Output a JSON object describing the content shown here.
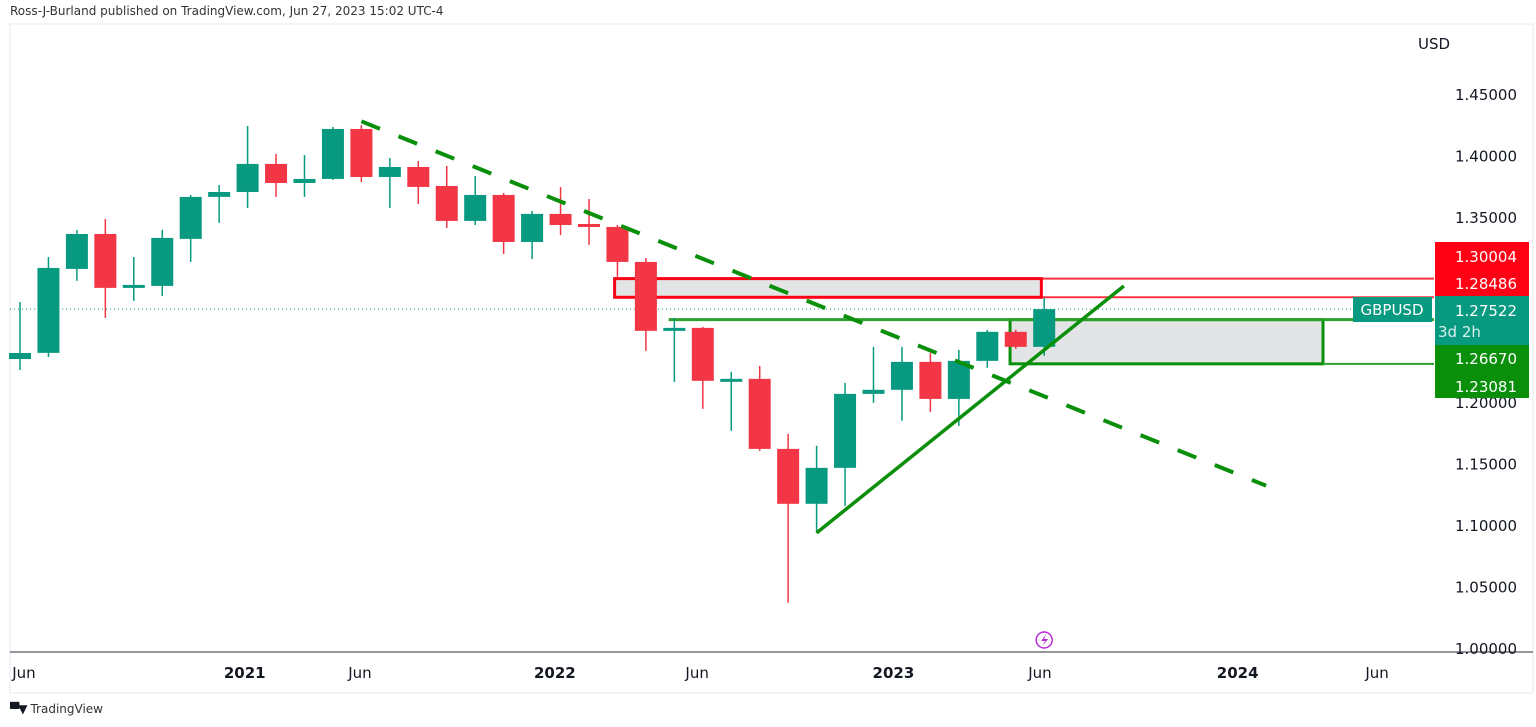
{
  "header": {
    "attribution": "Ross-J-Burland published on TradingView.com, Jun 27, 2023 15:02 UTC-4"
  },
  "footer": {
    "brand": "TradingView",
    "logo_mark": "TV"
  },
  "colors": {
    "up": "#089981",
    "down": "#f23645",
    "trend": "#0a8f0a",
    "zone_red": "#ff0014",
    "zone_green": "#0a8f0a",
    "zone_fill": "#e3e4e6",
    "event": "#b92ad6"
  },
  "chart_data": {
    "type": "candlestick",
    "symbol": "GBPUSD",
    "currency": "USD",
    "timeframe": "monthly",
    "ylim": [
      1.0,
      1.47
    ],
    "yticks": [
      "1.45000",
      "1.40000",
      "1.35000",
      "1.20000",
      "1.15000",
      "1.10000",
      "1.05000",
      "1.00000"
    ],
    "xticks": [
      {
        "label": "Jun",
        "x": 0.14,
        "bold": false
      },
      {
        "label": "2021",
        "x": 7.9,
        "bold": true
      },
      {
        "label": "Jun",
        "x": 11.95,
        "bold": false
      },
      {
        "label": "2022",
        "x": 18.8,
        "bold": true
      },
      {
        "label": "Jun",
        "x": 23.8,
        "bold": false
      },
      {
        "label": "2023",
        "x": 30.7,
        "bold": true
      },
      {
        "label": "Jun",
        "x": 35.85,
        "bold": false
      },
      {
        "label": "2024",
        "x": 42.8,
        "bold": true
      },
      {
        "label": "Jun",
        "x": 47.7,
        "bold": false
      }
    ],
    "candles": [
      [
        1.2347,
        1.281,
        1.2258,
        1.2396
      ],
      [
        1.2397,
        1.3176,
        1.2364,
        1.3087
      ],
      [
        1.3079,
        1.3396,
        1.2982,
        1.3363
      ],
      [
        1.3363,
        1.3485,
        1.2681,
        1.2925
      ],
      [
        1.2925,
        1.3176,
        1.2819,
        1.2949
      ],
      [
        1.2941,
        1.3396,
        1.286,
        1.3331
      ],
      [
        1.3323,
        1.368,
        1.3136,
        1.3664
      ],
      [
        1.3664,
        1.3761,
        1.3453,
        1.3704
      ],
      [
        1.3704,
        1.424,
        1.3574,
        1.3932
      ],
      [
        1.3932,
        1.4013,
        1.3664,
        1.3777
      ],
      [
        1.3777,
        1.4005,
        1.3664,
        1.381
      ],
      [
        1.381,
        1.4232,
        1.3802,
        1.4216
      ],
      [
        1.4216,
        1.4248,
        1.3785,
        1.3826
      ],
      [
        1.3826,
        1.398,
        1.3574,
        1.3907
      ],
      [
        1.3907,
        1.3956,
        1.3607,
        1.3745
      ],
      [
        1.3753,
        1.3915,
        1.3412,
        1.3469
      ],
      [
        1.3469,
        1.3834,
        1.3436,
        1.368
      ],
      [
        1.368,
        1.3696,
        1.32,
        1.3298
      ],
      [
        1.3298,
        1.355,
        1.316,
        1.3526
      ],
      [
        1.3526,
        1.3745,
        1.3355,
        1.3436
      ],
      [
        1.3444,
        1.3647,
        1.3274,
        1.342
      ],
      [
        1.342,
        1.3436,
        1.3014,
        1.3136
      ],
      [
        1.3136,
        1.3168,
        1.2413,
        1.2576
      ],
      [
        1.2576,
        1.2681,
        1.2161,
        1.26
      ],
      [
        1.26,
        1.2608,
        1.1942,
        1.217
      ],
      [
        1.217,
        1.2243,
        1.1764,
        1.2186
      ],
      [
        1.2186,
        1.2291,
        1.1601,
        1.1617
      ],
      [
        1.1617,
        1.1739,
        1.0367,
        1.1171
      ],
      [
        1.1171,
        1.1642,
        1.0935,
        1.1463
      ],
      [
        1.1463,
        1.2153,
        1.1155,
        1.2064
      ],
      [
        1.2064,
        1.2446,
        1.1991,
        1.2097
      ],
      [
        1.2097,
        1.2446,
        1.1845,
        1.2324
      ],
      [
        1.2324,
        1.2397,
        1.1918,
        1.2023
      ],
      [
        1.2023,
        1.2421,
        1.1804,
        1.2332
      ],
      [
        1.2332,
        1.2584,
        1.2275,
        1.2568
      ],
      [
        1.2568,
        1.2584,
        1.243,
        1.2446
      ],
      [
        1.2446,
        1.2843,
        1.2373,
        1.27522
      ]
    ],
    "candle_format": "open,high,low,close",
    "last_price": "1.27522",
    "countdown": "3d 2h",
    "price_labels": {
      "red_top": "1.30004",
      "red_bottom": "1.28486",
      "green_top": "1.26670",
      "green_bottom": "1.23081"
    },
    "drawings": {
      "downtrend_dashed": [
        [
          12,
          1.4278
        ],
        [
          43.8,
          1.1318
        ]
      ],
      "uptrend_solid": [
        [
          28,
          1.0935
        ],
        [
          38.8,
          1.294
        ]
      ],
      "red_zone": {
        "x": [
          20.9,
          35.9
        ],
        "price": [
          1.28486,
          1.30004
        ]
      },
      "green_zone": {
        "x": [
          34.8,
          45.8
        ],
        "price": [
          1.23081,
          1.2667
        ]
      },
      "green_line_start": 22.8
    },
    "event_marker_x": 36
  }
}
